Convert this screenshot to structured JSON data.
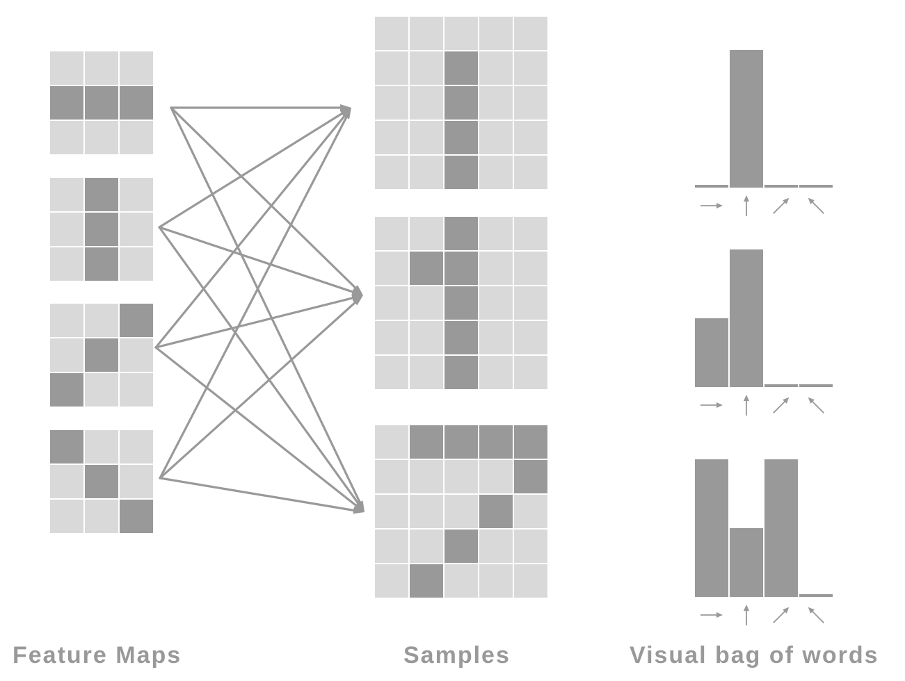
{
  "captions": {
    "feature_maps": "Feature Maps",
    "samples": "Samples",
    "bag_of_words": "Visual bag of words"
  },
  "colors": {
    "light_cell": "#d9d9d9",
    "dark_cell": "#999999",
    "line": "#999999",
    "background": "#ffffff"
  },
  "feature_maps": [
    {
      "name": "horizontal",
      "grid": [
        [
          0,
          0,
          0
        ],
        [
          1,
          1,
          1
        ],
        [
          0,
          0,
          0
        ]
      ]
    },
    {
      "name": "vertical",
      "grid": [
        [
          0,
          1,
          0
        ],
        [
          0,
          1,
          0
        ],
        [
          0,
          1,
          0
        ]
      ]
    },
    {
      "name": "diagonal-up",
      "grid": [
        [
          0,
          0,
          1
        ],
        [
          0,
          1,
          0
        ],
        [
          1,
          0,
          0
        ]
      ]
    },
    {
      "name": "diagonal-down",
      "grid": [
        [
          1,
          0,
          0
        ],
        [
          0,
          1,
          0
        ],
        [
          0,
          0,
          1
        ]
      ]
    }
  ],
  "samples": [
    {
      "name": "sample-1",
      "grid": [
        [
          0,
          0,
          0,
          0,
          0
        ],
        [
          0,
          0,
          1,
          0,
          0
        ],
        [
          0,
          0,
          1,
          0,
          0
        ],
        [
          0,
          0,
          1,
          0,
          0
        ],
        [
          0,
          0,
          1,
          0,
          0
        ]
      ]
    },
    {
      "name": "sample-2",
      "grid": [
        [
          0,
          0,
          1,
          0,
          0
        ],
        [
          0,
          1,
          1,
          0,
          0
        ],
        [
          0,
          0,
          1,
          0,
          0
        ],
        [
          0,
          0,
          1,
          0,
          0
        ],
        [
          0,
          0,
          1,
          0,
          0
        ]
      ]
    },
    {
      "name": "sample-3",
      "grid": [
        [
          0,
          1,
          1,
          1,
          1
        ],
        [
          0,
          0,
          0,
          0,
          1
        ],
        [
          0,
          0,
          0,
          1,
          0
        ],
        [
          0,
          0,
          1,
          0,
          0
        ],
        [
          0,
          1,
          0,
          0,
          0
        ]
      ]
    }
  ],
  "histograms": [
    {
      "name": "histogram-1",
      "values": [
        0,
        4,
        0,
        0
      ]
    },
    {
      "name": "histogram-2",
      "values": [
        2,
        4,
        0,
        0
      ]
    },
    {
      "name": "histogram-3",
      "values": [
        4,
        2,
        4,
        0
      ]
    }
  ],
  "histogram_bins": [
    "arrow-right-icon",
    "arrow-up-icon",
    "arrow-up-right-icon",
    "arrow-up-left-icon"
  ],
  "connections": "every feature map connects to every sample"
}
